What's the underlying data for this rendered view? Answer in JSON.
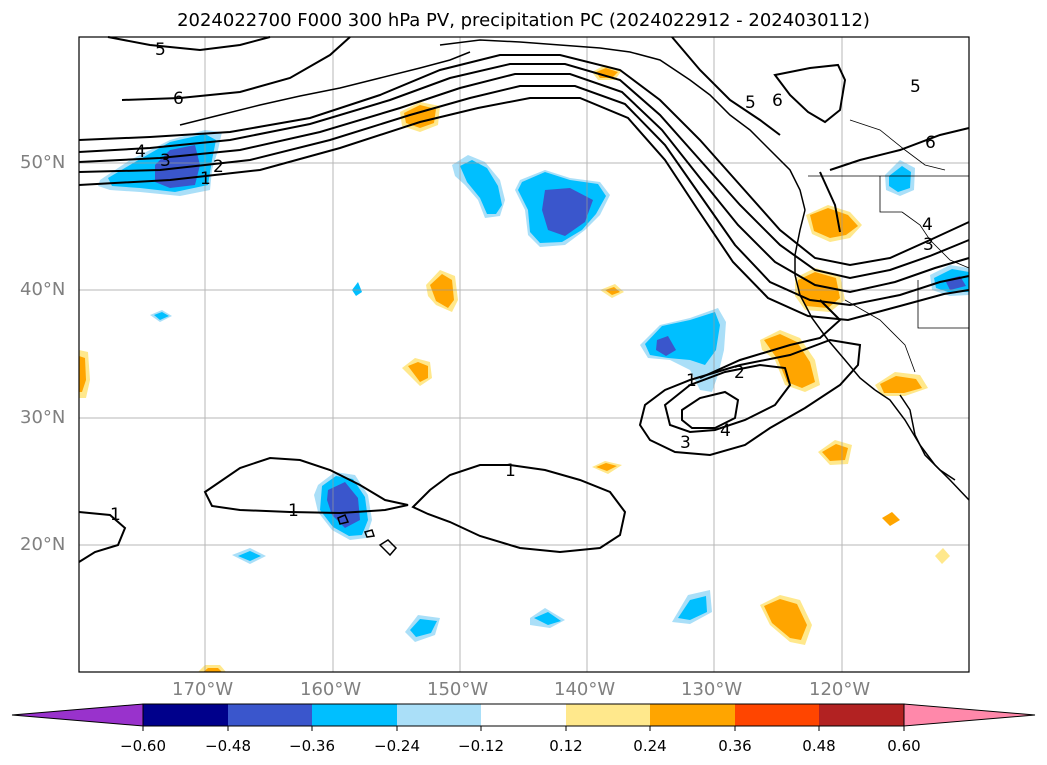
{
  "title": "2024022700 F000 300 hPa PV, precipitation PC (2024022912 - 2024030112)",
  "map": {
    "lat_labels": [
      "50°N",
      "40°N",
      "30°N",
      "20°N"
    ],
    "lon_labels": [
      "170°W",
      "160°W",
      "150°W",
      "140°W",
      "130°W",
      "120°W"
    ],
    "contour_labels": [
      "5",
      "6",
      "4",
      "3",
      "2",
      "1",
      "5",
      "6",
      "5",
      "6",
      "4",
      "3",
      "1",
      "2",
      "3",
      "4",
      "1",
      "1",
      "1"
    ],
    "colors": {
      "light_blue": "#aadff8",
      "cyan": "#00bfff",
      "royal_blue": "#3a56cc",
      "yellow": "#ffe88c",
      "orange": "#ffa500"
    }
  },
  "colorbar": {
    "labels": [
      "−0.60",
      "−0.48",
      "−0.36",
      "−0.24",
      "−0.12",
      "0.12",
      "0.24",
      "0.36",
      "0.48",
      "0.60"
    ],
    "colors": [
      "#9932cc",
      "#00008b",
      "#3a56cc",
      "#00bfff",
      "#aadff8",
      "#ffffff",
      "#ffe88c",
      "#ffa500",
      "#ff4500",
      "#b22222",
      "#ff88aa",
      "#ff88aa"
    ]
  }
}
